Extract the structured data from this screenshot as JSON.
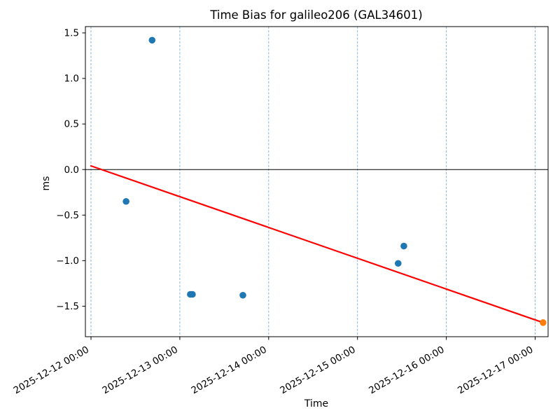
{
  "chart_data": {
    "type": "scatter",
    "title": "Time Bias for galileo206 (GAL34601)",
    "xlabel": "Time",
    "ylabel": "ms",
    "x_ticks": [
      {
        "days": 0,
        "label": "2025-12-12 00:00"
      },
      {
        "days": 1,
        "label": "2025-12-13 00:00"
      },
      {
        "days": 2,
        "label": "2025-12-14 00:00"
      },
      {
        "days": 3,
        "label": "2025-12-15 00:00"
      },
      {
        "days": 4,
        "label": "2025-12-16 00:00"
      },
      {
        "days": 5,
        "label": "2025-12-17 00:00"
      }
    ],
    "y_ticks": [
      {
        "value": 1.5,
        "label": "1.5"
      },
      {
        "value": 1.0,
        "label": "1.0"
      },
      {
        "value": 0.5,
        "label": "0.5"
      },
      {
        "value": 0.0,
        "label": "0.0"
      },
      {
        "value": -0.5,
        "label": "−0.5"
      },
      {
        "value": -1.0,
        "label": "−1.0"
      },
      {
        "value": -1.5,
        "label": "−1.5"
      }
    ],
    "xlim_days": [
      -0.065,
      5.145
    ],
    "ylim": [
      -1.84,
      1.57
    ],
    "grid": {
      "vertical_dashed": true,
      "color": "#7fb0d6"
    },
    "zero_line_ms": 0.0,
    "series": [
      {
        "name": "bias-points",
        "color": "#1f77b4",
        "points": [
          {
            "time": "2025-12-12 09:29",
            "days": 0.395,
            "ms": -0.35
          },
          {
            "time": "2025-12-12 16:31",
            "days": 0.688,
            "ms": 1.42
          },
          {
            "time": "2025-12-13 02:50",
            "days": 1.118,
            "ms": -1.37
          },
          {
            "time": "2025-12-13 03:24",
            "days": 1.142,
            "ms": -1.37
          },
          {
            "time": "2025-12-13 17:02",
            "days": 1.71,
            "ms": -1.38
          },
          {
            "time": "2025-12-15 10:59",
            "days": 3.458,
            "ms": -1.03
          },
          {
            "time": "2025-12-15 12:32",
            "days": 3.522,
            "ms": -0.84
          }
        ]
      },
      {
        "name": "latest-point",
        "color": "#ff7f0e",
        "points": [
          {
            "time": "2025-12-17 02:08",
            "days": 5.089,
            "ms": -1.68
          }
        ]
      }
    ],
    "trend_line": {
      "color": "#ff0000",
      "start": {
        "days": 0.0,
        "ms": 0.04
      },
      "end": {
        "days": 5.089,
        "ms": -1.68
      }
    }
  }
}
